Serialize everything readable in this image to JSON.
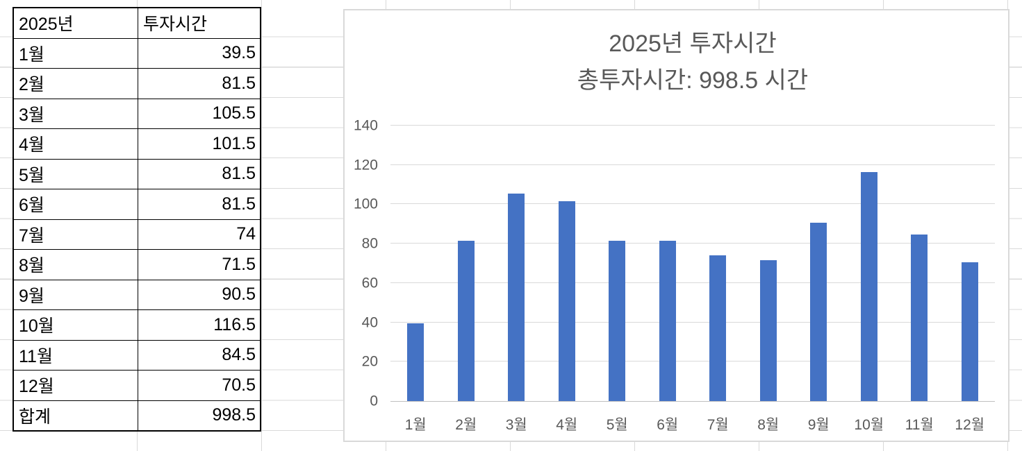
{
  "sheet": {
    "table": {
      "header": {
        "year": "2025년",
        "hours": "투자시간"
      },
      "rows": [
        {
          "label": "1월",
          "value": "39.5"
        },
        {
          "label": "2월",
          "value": "81.5"
        },
        {
          "label": "3월",
          "value": "105.5"
        },
        {
          "label": "4월",
          "value": "101.5"
        },
        {
          "label": "5월",
          "value": "81.5"
        },
        {
          "label": "6월",
          "value": "81.5"
        },
        {
          "label": "7월",
          "value": "74"
        },
        {
          "label": "8월",
          "value": "71.5"
        },
        {
          "label": "9월",
          "value": "90.5"
        },
        {
          "label": "10월",
          "value": "116.5"
        },
        {
          "label": "11월",
          "value": "84.5"
        },
        {
          "label": "12월",
          "value": "70.5"
        },
        {
          "label": "합계",
          "value": "998.5"
        }
      ]
    }
  },
  "chart_data": {
    "type": "bar",
    "title": "2025년 투자시간",
    "subtitle": "총투자시간: 998.5 시간",
    "categories": [
      "1월",
      "2월",
      "3월",
      "4월",
      "5월",
      "6월",
      "7월",
      "8월",
      "9월",
      "10월",
      "11월",
      "12월"
    ],
    "values": [
      39.5,
      81.5,
      105.5,
      101.5,
      81.5,
      81.5,
      74,
      71.5,
      90.5,
      116.5,
      84.5,
      70.5
    ],
    "total": 998.5,
    "xlabel": "",
    "ylabel": "",
    "ylim": [
      0,
      140
    ],
    "yticks": [
      0,
      20,
      40,
      60,
      80,
      100,
      120,
      140
    ],
    "grid": true,
    "legend": false,
    "bar_color": "#4472C4",
    "text_color": "#595959",
    "gridline_color": "#D9D9D9"
  }
}
